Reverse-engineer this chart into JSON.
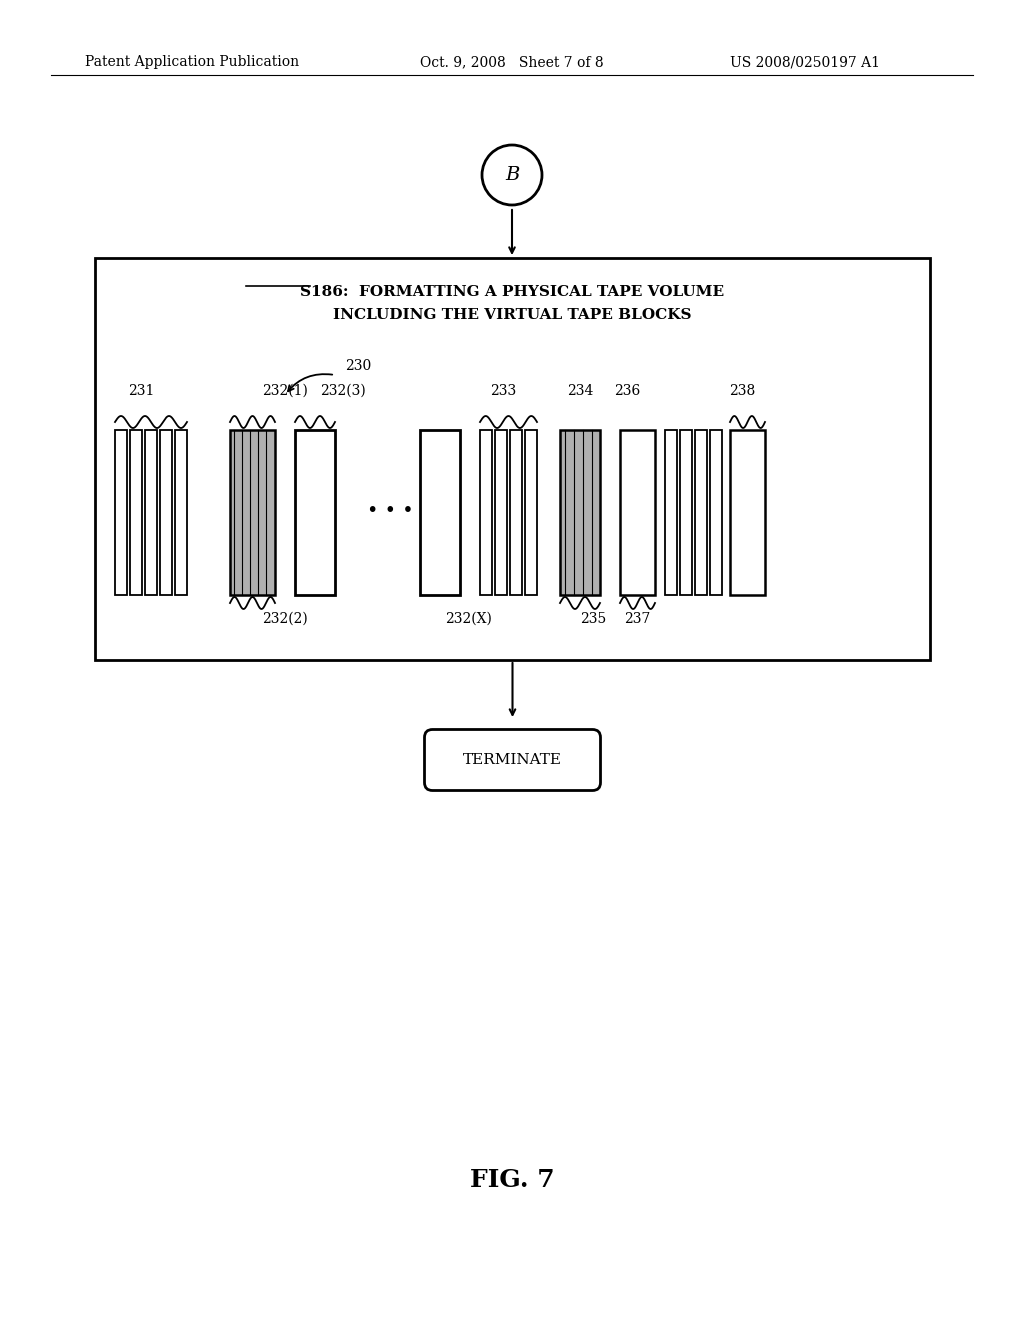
{
  "bg_color": "#ffffff",
  "header_left": "Patent Application Publication",
  "header_mid": "Oct. 9, 2008   Sheet 7 of 8",
  "header_right": "US 2008/0250197 A1",
  "connector_label": "B",
  "box_title_line1": "S186:  FORMATTING A PHYSICAL TAPE VOLUME",
  "box_title_line2": "INCLUDING THE VIRTUAL TAPE BLOCKS",
  "tape_label": "230",
  "label_231": "231",
  "label_232_1": "232(1)",
  "label_232_2": "232(2)",
  "label_232_3": "232(3)",
  "label_232_x": "232(X)",
  "label_233": "233",
  "label_234": "234",
  "label_235": "235",
  "label_236": "236",
  "label_237": "237",
  "label_238": "238",
  "terminate_label": "TERMINATE",
  "fig_label": "FIG. 7"
}
